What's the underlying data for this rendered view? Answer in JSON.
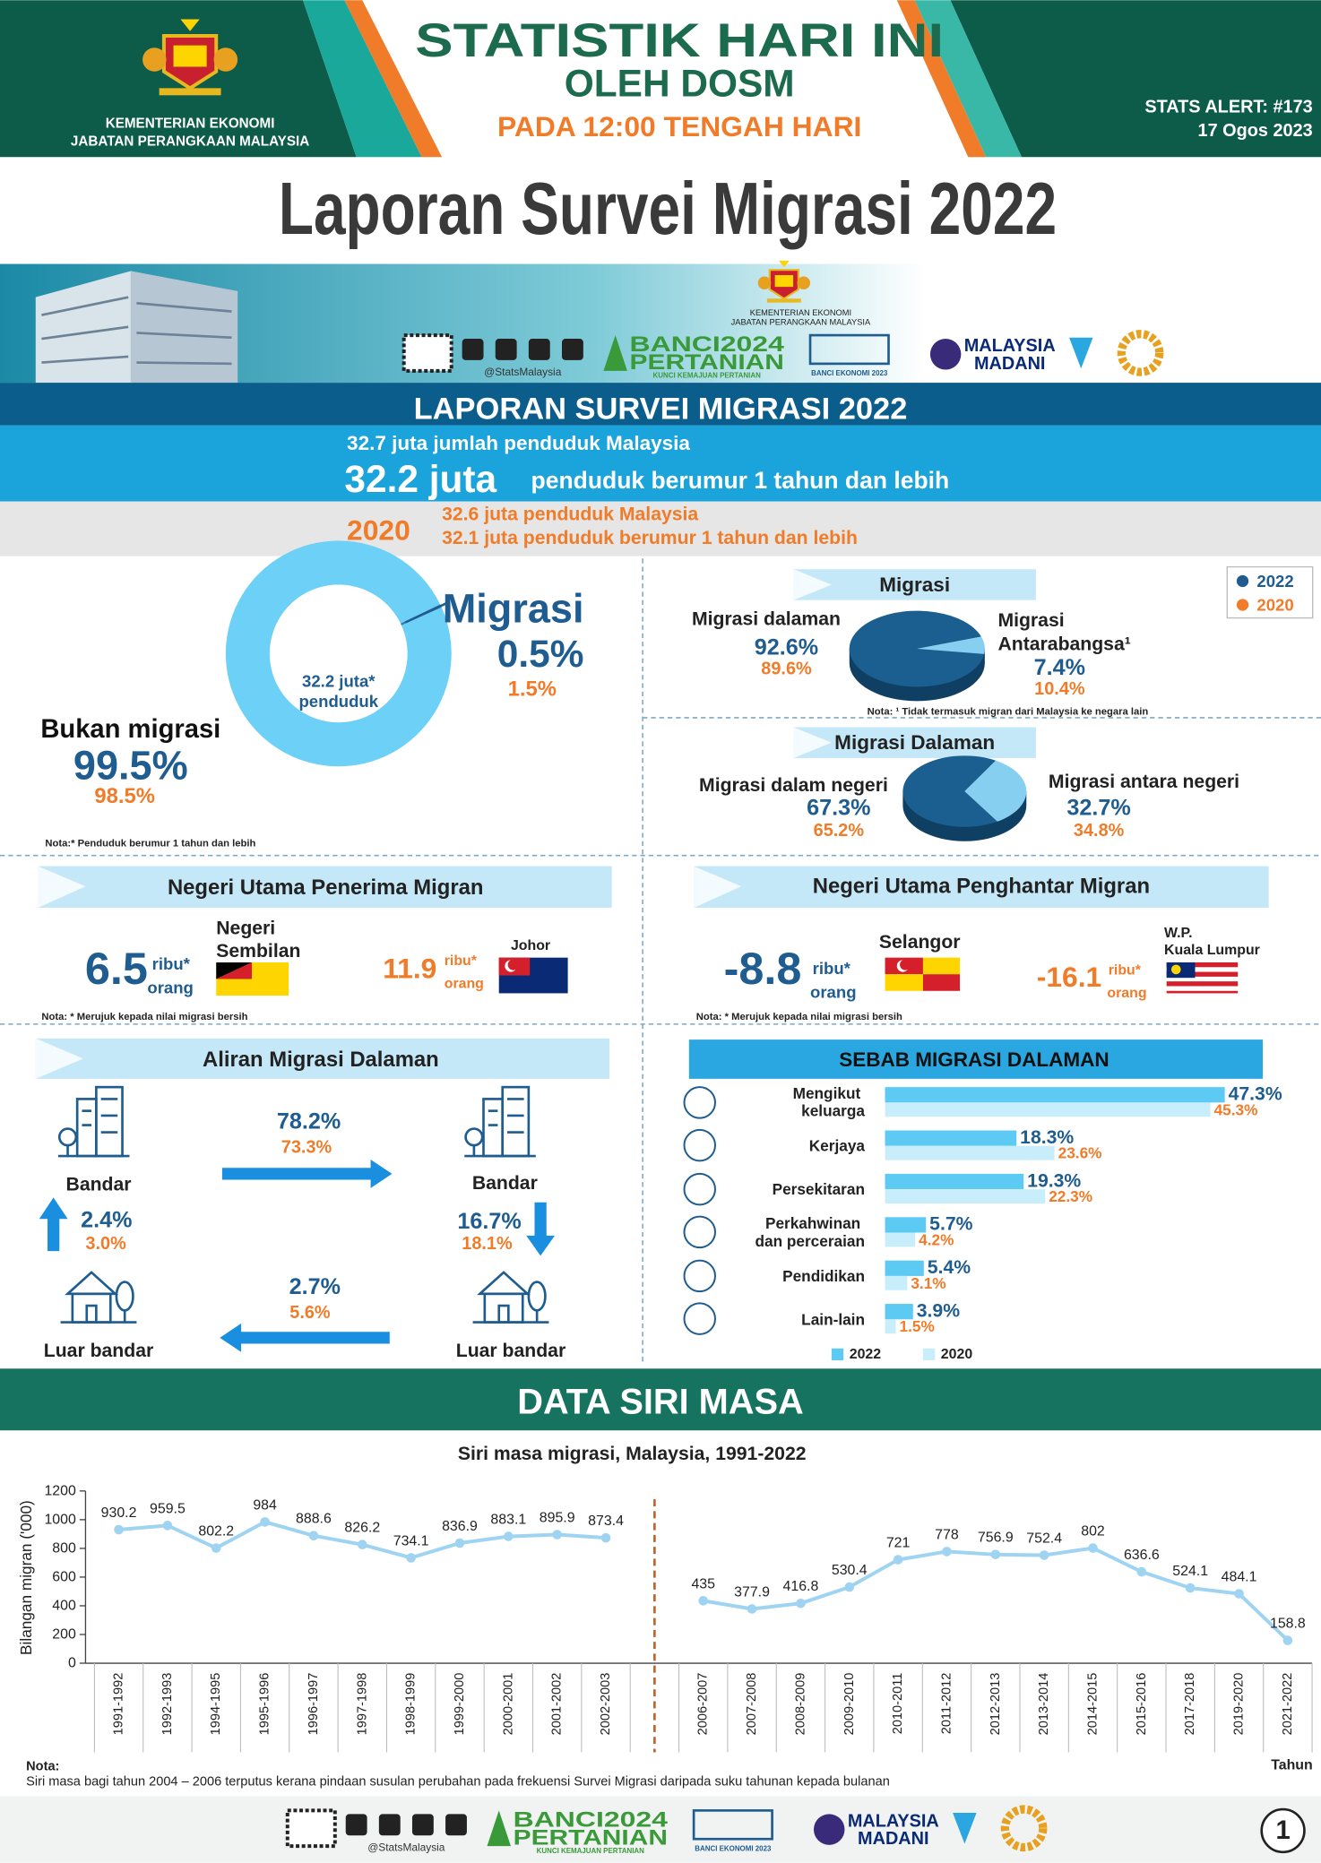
{
  "header": {
    "ministry": "KEMENTERIAN EKONOMI",
    "department": "JABATAN PERANGKAAN MALAYSIA",
    "title": "STATISTIK HARI INI",
    "subtitle": "OLEH DOSM",
    "time": "PADA 12:00 TENGAH HARI",
    "alert": "STATS ALERT: #173",
    "date": "17 Ogos 2023"
  },
  "main_title": "Laporan Survei Migrasi 2022",
  "logos": {
    "ministry": "KEMENTERIAN EKONOMI",
    "department": "JABATAN PERANGKAAN MALAYSIA",
    "social": "@StatsMalaysia",
    "banci_1": "BANCI2024",
    "banci_2": "PERTANIAN",
    "banci_tag": "KUNCI KEMAJUAN PERTANIAN",
    "be": "BANCI EKONOMI 2023",
    "madani_1": "MALAYSIA",
    "madani_2": "MADANI"
  },
  "summary": {
    "heading": "LAPORAN SURVEI MIGRASI 2022",
    "population": "32.7 juta jumlah penduduk Malaysia",
    "aged_value": "32.2 juta",
    "aged_text": "penduduk berumur 1 tahun dan lebih",
    "year_2020": "2020",
    "population_2020": "32.6 juta penduduk Malaysia",
    "aged_2020": "32.1 juta penduduk berumur 1 tahun dan lebih"
  },
  "chart_data": [
    {
      "type": "pie",
      "donut": true,
      "center_label": [
        "32.2 juta*",
        "penduduk"
      ],
      "categories": [
        "Migrasi",
        "Bukan migrasi"
      ],
      "colors": [
        "#2a7fb8",
        "#6dd0f7"
      ],
      "series": [
        {
          "name": "2022",
          "color": "#1f5c8f",
          "values": [
            0.5,
            99.5
          ],
          "value_labels": [
            "0.5%",
            "99.5%"
          ]
        },
        {
          "name": "2020",
          "color": "#f07c2a",
          "values": [
            1.5,
            98.5
          ],
          "value_labels": [
            "1.5%",
            "98.5%"
          ]
        }
      ],
      "note": "Nota:* Penduduk berumur 1 tahun dan lebih"
    },
    {
      "type": "pie",
      "title": "Migrasi",
      "categories": [
        "Migrasi dalaman",
        "Migrasi Antarabangsa¹"
      ],
      "colors": [
        "#1a5f8f",
        "#86cff0"
      ],
      "series": [
        {
          "name": "2022",
          "color": "#1f5c8f",
          "values": [
            92.6,
            7.4
          ],
          "value_labels": [
            "92.6%",
            "7.4%"
          ]
        },
        {
          "name": "2020",
          "color": "#f07c2a",
          "values": [
            89.6,
            10.4
          ],
          "value_labels": [
            "89.6%",
            "10.4%"
          ]
        }
      ],
      "note": "Nota:  ¹ Tidak termasuk migran dari Malaysia ke negara lain"
    },
    {
      "type": "pie",
      "title": "Migrasi Dalaman",
      "categories": [
        "Migrasi dalam negeri",
        "Migrasi antara negeri"
      ],
      "colors": [
        "#1a5f8f",
        "#86cff0"
      ],
      "series": [
        {
          "name": "2022",
          "color": "#1f5c8f",
          "values": [
            67.3,
            32.7
          ],
          "value_labels": [
            "67.3%",
            "32.7%"
          ]
        },
        {
          "name": "2020",
          "color": "#f07c2a",
          "values": [
            65.2,
            34.8
          ],
          "value_labels": [
            "65.2%",
            "34.8%"
          ]
        }
      ]
    },
    {
      "type": "bar",
      "orientation": "horizontal",
      "title": "SEBAB MIGRASI DALAMAN",
      "categories": [
        "Mengikut keluarga",
        "Kerjaya",
        "Persekitaran",
        "Perkahwinan dan perceraian",
        "Pendidikan",
        "Lain-lain"
      ],
      "series": [
        {
          "name": "2022",
          "color": "#5ccaf3",
          "values": [
            47.3,
            18.3,
            19.3,
            5.7,
            5.4,
            3.9
          ],
          "value_labels": [
            "47.3%",
            "18.3%",
            "19.3%",
            "5.7%",
            "5.4%",
            "3.9%"
          ]
        },
        {
          "name": "2020",
          "color": "#c9eefb",
          "values": [
            45.3,
            23.6,
            22.3,
            4.2,
            3.1,
            1.5
          ],
          "value_labels": [
            "45.3%",
            "23.6%",
            "22.3%",
            "4.2%",
            "3.1%",
            "1.5%"
          ]
        }
      ]
    },
    {
      "type": "line",
      "title": "Siri masa migrasi, Malaysia, 1991-2022",
      "y_label": "Bilangan migran ('000)",
      "x_label": "Tahun",
      "categories": [
        "1991-1992",
        "1992-1993",
        "1994-1995",
        "1995-1996",
        "1996-1997",
        "1997-1998",
        "1998-1999",
        "1999-2000",
        "2000-2001",
        "2001-2002",
        "2002-2003",
        null,
        "2006-2007",
        "2007-2008",
        "2008-2009",
        "2009-2010",
        "2010-2011",
        "2011-2012",
        "2012-2013",
        "2013-2014",
        "2014-2015",
        "2015-2016",
        "2017-2018",
        "2019-2020",
        "2021-2022"
      ],
      "values": [
        930.2,
        959.5,
        802.2,
        984,
        888.6,
        826.2,
        734.1,
        836.9,
        883.1,
        895.9,
        873.4,
        null,
        435,
        377.9,
        416.8,
        530.4,
        721,
        778,
        756.9,
        752.4,
        802,
        636.6,
        524.1,
        484.1,
        158.8
      ],
      "color": "#9fd3f2",
      "ylim": [
        0,
        1200
      ],
      "yticks": [
        0,
        200,
        400,
        600,
        800,
        1000,
        1200
      ]
    }
  ],
  "receiving": {
    "title": "Negeri Utama Penerima Migran",
    "items": [
      {
        "state": "Negeri Sembilan",
        "value": "6.5",
        "unit": "ribu*",
        "unit2": "orang"
      },
      {
        "state": "Johor",
        "value": "11.9",
        "unit": "ribu*",
        "unit2": "orang"
      }
    ],
    "note": "Nota: * Merujuk kepada nilai migrasi bersih"
  },
  "sending": {
    "title": "Negeri Utama Penghantar Migran",
    "items": [
      {
        "state": "Selangor",
        "value": "-8.8",
        "unit": "ribu*",
        "unit2": "orang"
      },
      {
        "state": "W.P. Kuala Lumpur",
        "value": "-16.1",
        "unit": "ribu*",
        "unit2": "orang"
      }
    ],
    "note": "Nota: * Merujuk kepada nilai migrasi bersih"
  },
  "flow": {
    "title": "Aliran Migrasi Dalaman",
    "nodes": [
      "Bandar",
      "Bandar",
      "Luar bandar",
      "Luar bandar"
    ],
    "flows": [
      {
        "v2022": "78.2%",
        "v2020": "73.3%"
      },
      {
        "v2022": "2.4%",
        "v2020": "3.0%"
      },
      {
        "v2022": "16.7%",
        "v2020": "18.1%"
      },
      {
        "v2022": "2.7%",
        "v2020": "5.6%"
      }
    ]
  },
  "time_series": {
    "heading": "DATA SIRI MASA",
    "note_label": "Nota:",
    "note": "Siri masa bagi tahun 2004 – 2006 terputus kerana pindaan susulan perubahan pada frekuensi Survei Migrasi daripada suku tahunan kepada bulanan"
  },
  "page_number": "1"
}
